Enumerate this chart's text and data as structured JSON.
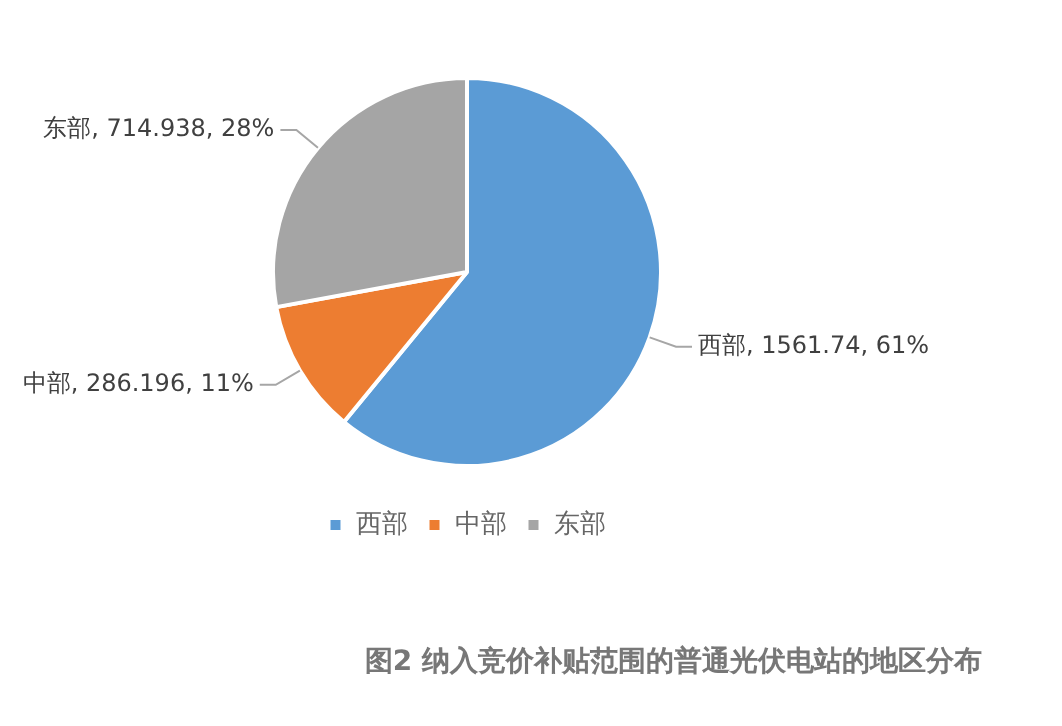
{
  "chart_data": {
    "type": "pie",
    "title": "图2 纳入竞价补贴范围的普通光伏电站的地区分布",
    "categories": [
      "西部",
      "中部",
      "东部"
    ],
    "values": [
      1561.74,
      286.196,
      714.938
    ],
    "colors": [
      "#5b9bd5",
      "#ed7d31",
      "#a5a5a5"
    ],
    "value_labels": [
      "西部, 1561.74, 61%",
      "中部, 286.196, 11%",
      "东部, 714.938, 28%"
    ],
    "legend": "bottom"
  }
}
